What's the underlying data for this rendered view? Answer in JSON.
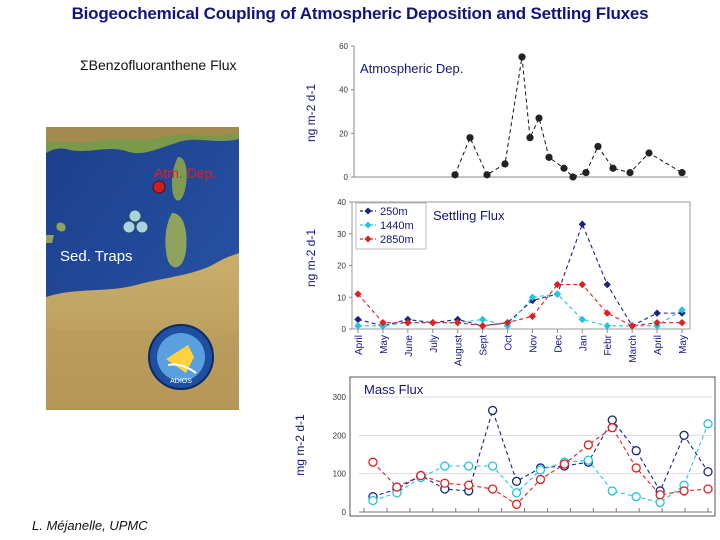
{
  "title": "Biogeochemical Coupling of Atmospheric Deposition and Settling Fluxes",
  "compound_label": "ΣBenzofluoranthene Flux",
  "map": {
    "atm_label": "Atm. Dep.",
    "traps_label": "Sed. Traps",
    "logo_text": "ADIOS"
  },
  "author": "L. Méjanelle, UPMC",
  "colors": {
    "title": "#14147a",
    "black": "#111111",
    "navy": "#1a237e",
    "cyan": "#22c4e0",
    "red": "#e02020",
    "marker": "#cc2020"
  },
  "chart_data": [
    {
      "type": "line",
      "title": "Atmospheric Dep.",
      "ylabel": "ng m-2 d-1",
      "ylim": [
        0,
        60
      ],
      "yticks": [
        0,
        20,
        40,
        60
      ],
      "series": [
        {
          "values": [
            1,
            18,
            1,
            6,
            55,
            18,
            27,
            9,
            4,
            0,
            2,
            14,
            4,
            2,
            11,
            2
          ]
        }
      ]
    },
    {
      "type": "line",
      "title": "Settling Flux",
      "ylabel": "ng m-2 d-1",
      "ylim": [
        0,
        40
      ],
      "yticks": [
        0,
        10,
        20,
        30,
        40
      ],
      "categories": [
        "April",
        "May",
        "June",
        "July",
        "August",
        "Sept",
        "Oct",
        "Nov",
        "Dec",
        "Jan",
        "Febr",
        "March",
        "April",
        "May"
      ],
      "series": [
        {
          "name": "250m",
          "values": [
            3,
            1,
            3,
            2,
            3,
            1,
            2,
            9,
            11,
            33,
            14,
            1,
            5,
            5
          ]
        },
        {
          "name": "1440m",
          "values": [
            1,
            1,
            2,
            2,
            2,
            3,
            1,
            10,
            11,
            3,
            1,
            1,
            1,
            6
          ]
        },
        {
          "name": "2850m",
          "values": [
            11,
            2,
            2,
            2,
            2,
            1,
            2,
            4,
            14,
            14,
            5,
            1,
            2,
            2
          ]
        }
      ]
    },
    {
      "type": "line",
      "title": "Mass Flux",
      "ylabel": "mg m-2 d-1",
      "ylim": [
        0,
        300
      ],
      "yticks": [
        0,
        100,
        200,
        300
      ],
      "series": [
        {
          "values": [
            40,
            60,
            95,
            60,
            55,
            265,
            80,
            115,
            120,
            130,
            240,
            160,
            55,
            200,
            105
          ]
        },
        {
          "values": [
            30,
            50,
            90,
            120,
            120,
            120,
            50,
            110,
            130,
            135,
            55,
            40,
            25,
            70,
            230
          ]
        },
        {
          "values": [
            130,
            65,
            95,
            75,
            70,
            60,
            20,
            85,
            125,
            175,
            220,
            115,
            45,
            55,
            60
          ]
        }
      ]
    }
  ]
}
